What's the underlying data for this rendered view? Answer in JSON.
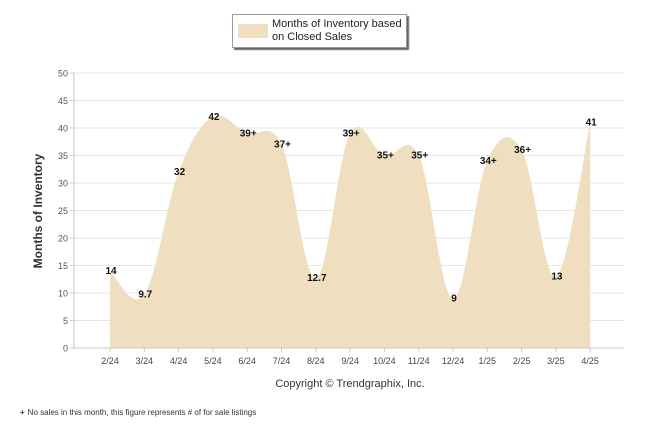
{
  "chart_data": {
    "type": "area",
    "categories": [
      "2/24",
      "3/24",
      "4/24",
      "5/24",
      "6/24",
      "7/24",
      "8/24",
      "9/24",
      "10/24",
      "11/24",
      "12/24",
      "1/25",
      "2/25",
      "3/25",
      "4/25"
    ],
    "series": [
      {
        "name": "Months of Inventory based on Closed Sales",
        "values": [
          14,
          9.7,
          32,
          42,
          39,
          37,
          12.7,
          39,
          35,
          35,
          9,
          34,
          36,
          13,
          41
        ],
        "labels": [
          "14",
          "9.7",
          "32",
          "42",
          "39+",
          "37+",
          "12.7",
          "39+",
          "35+",
          "35+",
          "9",
          "34+",
          "36+",
          "13",
          "41"
        ],
        "color": "#efdfc0"
      }
    ],
    "ylabel": "Months of Inventory",
    "xlabel": "",
    "ylim": [
      0,
      50
    ],
    "yticks": [
      0,
      5,
      10,
      15,
      20,
      25,
      30,
      35,
      40,
      45,
      50
    ],
    "grid": true,
    "legend": "top-center"
  },
  "copyright": "Copyright © Trendgraphix, Inc.",
  "footnote": {
    "symbol": "+",
    "text": "No sales in this month, this figure represents # of for sale listings"
  }
}
